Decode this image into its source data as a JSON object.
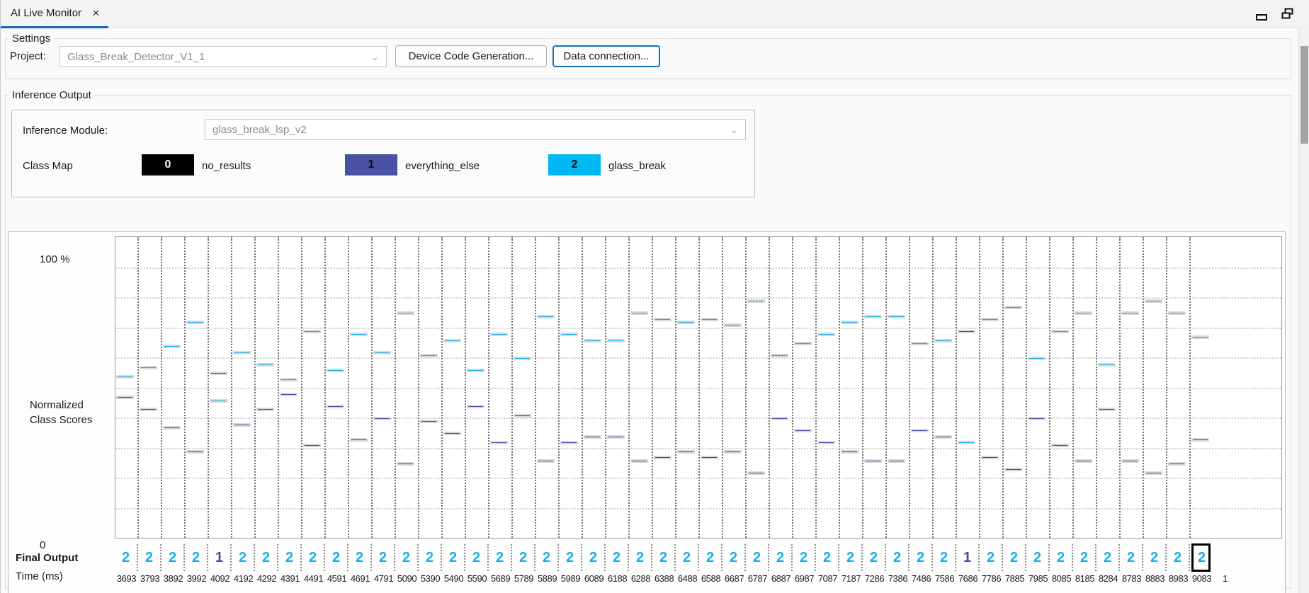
{
  "tab": {
    "title": "AI Live Monitor",
    "close_glyph": "✕"
  },
  "settings": {
    "section_label": "Settings",
    "project_label": "Project:",
    "project_value": "Glass_Break_Detector_V1_1",
    "device_code_button": "Device Code Generation...",
    "data_connection_button": "Data connection..."
  },
  "inference": {
    "section_label": "Inference Output",
    "module_label": "Inference Module:",
    "module_value": "glass_break_lsp_v2",
    "class_map_label": "Class Map",
    "classes": [
      {
        "id": "0",
        "name": "no_results",
        "color": "#000000",
        "text_color": "#ffffff"
      },
      {
        "id": "1",
        "name": "everything_else",
        "color": "#4a51a3",
        "text_color": "#0a0a0a"
      },
      {
        "id": "2",
        "name": "glass_break",
        "color": "#00b9f2",
        "text_color": "#0a0a0a"
      }
    ]
  },
  "chart_labels": {
    "y_top": "100 %",
    "y_axis_line1": "Normalized",
    "y_axis_line2": "Class Scores",
    "y_bottom": "0",
    "final_output": "Final Output",
    "time": "Time (ms)"
  },
  "chart_data": {
    "type": "scatter",
    "title": "Normalized class scores per inference over time",
    "xlabel": "Time (ms)",
    "ylabel": "Normalized Class Scores",
    "ylim": [
      0,
      100
    ],
    "grid": {
      "horizontal_divisions": 10,
      "vertical_per_column": true
    },
    "x_times_ms": [
      3693,
      3793,
      3892,
      3992,
      4092,
      4192,
      4292,
      4391,
      4491,
      4591,
      4691,
      4791,
      5090,
      5390,
      5490,
      5590,
      5689,
      5789,
      5889,
      5989,
      6089,
      6188,
      6288,
      6388,
      6488,
      6588,
      6687,
      6787,
      6887,
      6987,
      7087,
      7187,
      7286,
      7386,
      7486,
      7586,
      7686,
      7786,
      7885,
      7985,
      8085,
      8185,
      8284,
      8783,
      8883,
      8983,
      9083
    ],
    "x_trailing_partial_label": "1",
    "series": [
      {
        "name": "everything_else",
        "class_id": 1,
        "color": "#454da1",
        "values": [
          47,
          43,
          37,
          29,
          55,
          38,
          43,
          48,
          31,
          44,
          33,
          40,
          25,
          39,
          35,
          44,
          32,
          41,
          26,
          32,
          34,
          34,
          26,
          27,
          29,
          27,
          29,
          22,
          40,
          36,
          32,
          29,
          26,
          26,
          36,
          34,
          69,
          27,
          23,
          40,
          31,
          26,
          43,
          26,
          22,
          25,
          33
        ]
      },
      {
        "name": "glass_break",
        "class_id": 2,
        "color": "#14b1ec",
        "values": [
          54,
          57,
          64,
          72,
          46,
          62,
          58,
          53,
          69,
          56,
          68,
          62,
          75,
          61,
          66,
          56,
          68,
          60,
          74,
          68,
          66,
          66,
          75,
          73,
          72,
          73,
          71,
          79,
          61,
          65,
          68,
          72,
          74,
          74,
          65,
          66,
          32,
          73,
          77,
          60,
          69,
          75,
          58,
          75,
          79,
          75,
          67
        ]
      }
    ],
    "final_output": [
      2,
      2,
      2,
      2,
      1,
      2,
      2,
      2,
      2,
      2,
      2,
      2,
      2,
      2,
      2,
      2,
      2,
      2,
      2,
      2,
      2,
      2,
      2,
      2,
      2,
      2,
      2,
      2,
      2,
      2,
      2,
      2,
      2,
      2,
      2,
      2,
      1,
      2,
      2,
      2,
      2,
      2,
      2,
      2,
      2,
      2,
      2
    ],
    "final_output_colors": {
      "1": "#454da1",
      "2": "#14b1ec"
    },
    "last_output_highlighted": true
  }
}
